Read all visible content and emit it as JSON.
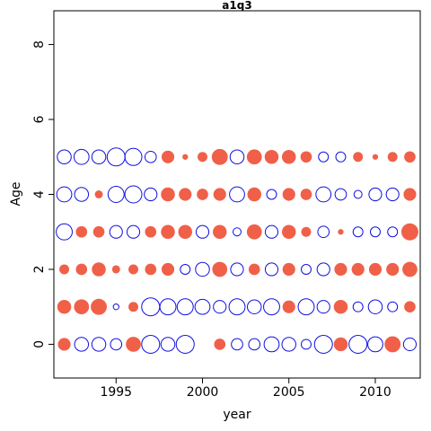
{
  "chart_data": {
    "type": "scatter",
    "title": "a1q3",
    "xlabel": "year",
    "ylabel": "Age",
    "xlim": [
      1991.4,
      2012.6
    ],
    "ylim": [
      -0.9,
      8.9
    ],
    "xticks": [
      1995,
      2000,
      2005,
      2010
    ],
    "yticks": [
      0,
      2,
      4,
      6,
      8
    ],
    "grid": false,
    "legend": "none",
    "colors": {
      "positive": "#f06048",
      "negative": "#1010e0"
    },
    "years": [
      1992,
      1993,
      1994,
      1995,
      1996,
      1997,
      1998,
      1999,
      2000,
      2001,
      2002,
      2003,
      2004,
      2005,
      2006,
      2007,
      2008,
      2009,
      2010,
      2011,
      2012
    ],
    "residuals_by_age": [
      {
        "age": 0,
        "values": [
          0.5,
          -0.6,
          -0.6,
          -0.4,
          0.7,
          -1.0,
          -0.6,
          -1.0,
          0.0,
          0.4,
          -0.4,
          -0.4,
          -0.7,
          -0.6,
          -0.3,
          -1.0,
          0.6,
          -1.0,
          -0.7,
          0.8,
          -0.5
        ]
      },
      {
        "age": 1,
        "values": [
          0.6,
          0.7,
          0.8,
          -0.1,
          0.3,
          -1.0,
          -0.8,
          -0.8,
          -0.7,
          -0.5,
          -0.8,
          -0.6,
          -0.8,
          0.5,
          -0.8,
          -0.5,
          0.6,
          -0.3,
          -0.6,
          -0.3,
          0.4
        ]
      },
      {
        "age": 2,
        "values": [
          0.3,
          0.4,
          0.6,
          0.2,
          0.3,
          0.4,
          0.5,
          -0.3,
          -0.6,
          0.7,
          -0.5,
          0.4,
          -0.5,
          0.5,
          -0.3,
          -0.5,
          0.5,
          0.5,
          0.5,
          0.5,
          0.7
        ]
      },
      {
        "age": 3,
        "values": [
          -0.8,
          0.4,
          0.4,
          -0.5,
          -0.5,
          0.4,
          0.6,
          0.6,
          -0.5,
          0.6,
          -0.2,
          0.7,
          -0.5,
          0.6,
          0.3,
          -0.4,
          0.1,
          -0.3,
          -0.3,
          -0.3,
          0.9
        ]
      },
      {
        "age": 4,
        "values": [
          -0.7,
          -0.6,
          0.2,
          -0.8,
          -0.9,
          -0.5,
          0.6,
          0.5,
          0.4,
          0.5,
          -0.7,
          0.6,
          -0.3,
          0.5,
          0.4,
          -0.7,
          -0.4,
          -0.2,
          -0.5,
          -0.5,
          0.5
        ]
      },
      {
        "age": 5,
        "values": [
          -0.6,
          -0.7,
          -0.6,
          -1.0,
          -0.9,
          -0.4,
          0.5,
          0.1,
          0.3,
          0.8,
          -0.6,
          0.7,
          0.6,
          0.6,
          0.4,
          -0.3,
          -0.3,
          0.3,
          0.1,
          0.3,
          0.4
        ]
      }
    ]
  }
}
